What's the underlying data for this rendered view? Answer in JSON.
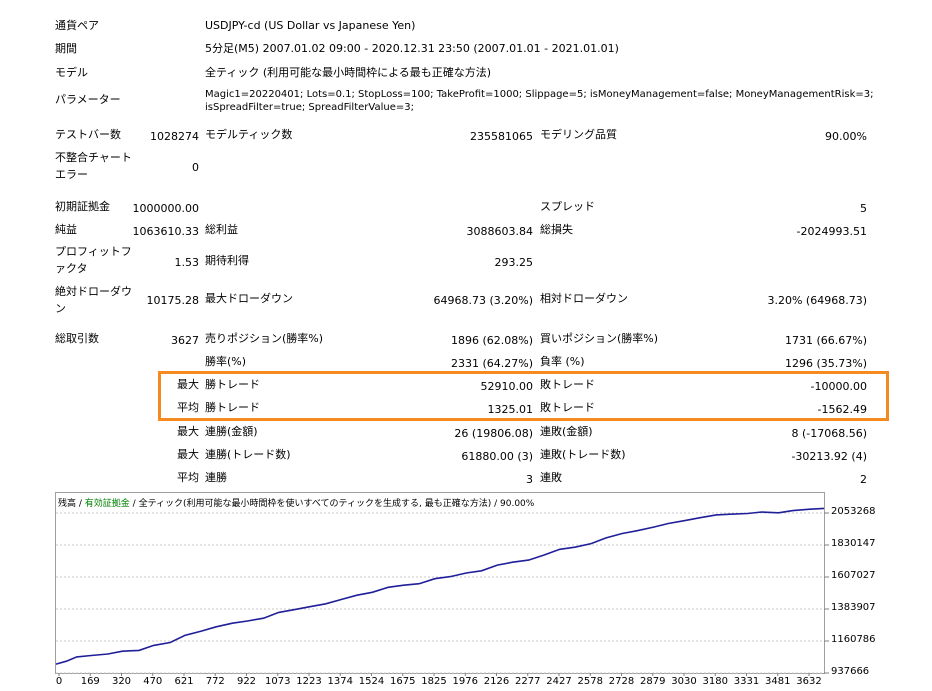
{
  "report": {
    "rows": {
      "symbol": {
        "label": "通貨ペア",
        "value": "USDJPY-cd (US Dollar vs Japanese Yen)"
      },
      "period": {
        "label": "期間",
        "value": "5分足(M5) 2007.01.02 09:00 - 2020.12.31 23:50 (2007.01.01 - 2021.01.01)"
      },
      "model": {
        "label": "モデル",
        "value": "全ティック (利用可能な最小時間枠による最も正確な方法)"
      },
      "params": {
        "label": "パラメーター",
        "line1": "Magic1=20220401; Lots=0.1; StopLoss=100; TakeProfit=1000; Slippage=5; isMoneyManagement=false; MoneyManagementRisk=3;",
        "line2": "isSpreadFilter=true; SpreadFilterValue=3;"
      }
    },
    "stats": {
      "bars_label": "テストバー数",
      "bars_value": "1028274",
      "ticks_label": "モデルティック数",
      "ticks_value": "235581065",
      "quality_label": "モデリング品質",
      "quality_value": "90.00%",
      "mismatch_label_1": "不整合チャート",
      "mismatch_label_2": "エラー",
      "mismatch_value": "0",
      "deposit_label": "初期証拠金",
      "deposit_value": "1000000.00",
      "spread_label": "スプレッド",
      "spread_value": "5",
      "net_label": "純益",
      "net_value": "1063610.33",
      "gross_profit_label": "総利益",
      "gross_profit_value": "3088603.84",
      "gross_loss_label": "総損失",
      "gross_loss_value": "-2024993.51",
      "pf_label_1": "プロフィットフ",
      "pf_label_2": "ァクタ",
      "pf_value": "1.53",
      "expected_label": "期待利得",
      "expected_value": "293.25",
      "abs_dd_label_1": "絶対ドローダウ",
      "abs_dd_label_2": "ン",
      "abs_dd_value": "10175.28",
      "max_dd_label": "最大ドローダウン",
      "max_dd_value": "64968.73 (3.20%)",
      "rel_dd_label": "相対ドローダウン",
      "rel_dd_value": "3.20% (64968.73)",
      "trades_label": "総取引数",
      "trades_value": "3627",
      "short_label": "売りポジション(勝率%)",
      "short_value": "1896 (62.08%)",
      "long_label": "買いポジション(勝率%)",
      "long_value": "1731 (66.67%)",
      "win_pct_label": "勝率(%)",
      "win_pct_value": "2331 (64.27%)",
      "loss_pct_label": "負率 (%)",
      "loss_pct_value": "1296 (35.73%)",
      "max_prefix": "最大",
      "avg_prefix": "平均",
      "largest_win_label": "勝トレード",
      "largest_win_value": "52910.00",
      "largest_loss_label": "敗トレード",
      "largest_loss_value": "-10000.00",
      "avg_win_label": "勝トレード",
      "avg_win_value": "1325.01",
      "avg_loss_label": "敗トレード",
      "avg_loss_value": "-1562.49",
      "max_cons_win_label": "連勝(金額)",
      "max_cons_win_value": "26 (19806.08)",
      "max_cons_loss_label": "連敗(金額)",
      "max_cons_loss_value": "8 (-17068.56)",
      "max_cons_profit_label": "連勝(トレード数)",
      "max_cons_profit_value": "61880.00 (3)",
      "max_cons_lossamt_label": "連敗(トレード数)",
      "max_cons_lossamt_value": "-30213.92 (4)",
      "avg_cons_win_label": "連勝",
      "avg_cons_win_value": "3",
      "avg_cons_loss_label": "連敗",
      "avg_cons_loss_value": "2"
    }
  },
  "graph": {
    "legend_balance": "残高",
    "legend_sep1": " / ",
    "legend_equity": "有効証拠金",
    "legend_sep2": " / ",
    "legend_model": "全ティック(利用可能な最小時間枠を使いすべてのティックを生成する, 最も正確な方法)",
    "legend_sep3": " / ",
    "legend_quality": "90.00%"
  },
  "colors": {
    "balance_line": "#1f1f9a",
    "highlight": "#f58a1f",
    "grid": "#c8c8c8"
  },
  "chart_data": {
    "type": "line",
    "title": "",
    "xlabel": "",
    "ylabel": "",
    "x_ticks": [
      "0",
      "169",
      "320",
      "470",
      "621",
      "772",
      "922",
      "1073",
      "1223",
      "1374",
      "1524",
      "1675",
      "1825",
      "1976",
      "2126",
      "2277",
      "2427",
      "2578",
      "2728",
      "2879",
      "3030",
      "3180",
      "3331",
      "3481",
      "3632"
    ],
    "y_ticks": [
      "2053268",
      "1830147",
      "1607027",
      "1383907",
      "1160786",
      "937666"
    ],
    "xlim": [
      0,
      3700
    ],
    "ylim": [
      937666,
      2130000
    ],
    "series": [
      {
        "values_x": [
          0,
          50,
          100,
          170,
          250,
          320,
          400,
          470,
          550,
          621,
          700,
          772,
          850,
          922,
          1000,
          1073,
          1150,
          1223,
          1300,
          1374,
          1450,
          1524,
          1600,
          1675,
          1750,
          1825,
          1900,
          1976,
          2050,
          2126,
          2200,
          2277,
          2350,
          2427,
          2500,
          2578,
          2650,
          2728,
          2800,
          2879,
          2950,
          3030,
          3100,
          3180,
          3250,
          3331,
          3400,
          3481,
          3550,
          3632,
          3700
        ],
        "values_y": [
          1000000,
          1020000,
          1050000,
          1060000,
          1070000,
          1090000,
          1095000,
          1130000,
          1150000,
          1200000,
          1230000,
          1260000,
          1285000,
          1300000,
          1320000,
          1360000,
          1380000,
          1400000,
          1420000,
          1450000,
          1480000,
          1500000,
          1535000,
          1550000,
          1560000,
          1595000,
          1610000,
          1635000,
          1650000,
          1690000,
          1710000,
          1725000,
          1760000,
          1800000,
          1815000,
          1840000,
          1880000,
          1910000,
          1930000,
          1955000,
          1980000,
          2000000,
          2020000,
          2040000,
          2045000,
          2050000,
          2060000,
          2055000,
          2070000,
          2080000,
          2085000
        ]
      }
    ]
  }
}
